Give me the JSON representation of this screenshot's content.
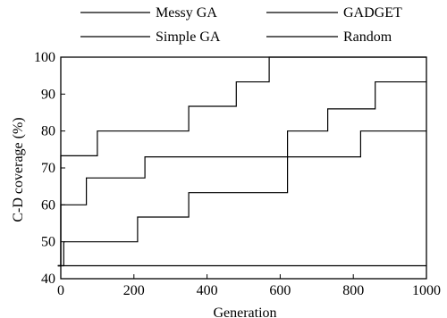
{
  "chart_data": {
    "type": "line",
    "title": "",
    "xlabel": "Generation",
    "ylabel": "C-D coverage (%)",
    "xlim": [
      0,
      1000
    ],
    "ylim": [
      40,
      100
    ],
    "xticks": [
      0,
      200,
      400,
      600,
      800,
      1000
    ],
    "yticks": [
      40,
      50,
      60,
      70,
      80,
      90,
      100
    ],
    "xtick_labels": [
      "0",
      "200",
      "400",
      "600",
      "800",
      "1000"
    ],
    "ytick_labels": [
      "40",
      "50",
      "60",
      "70",
      "80",
      "90",
      "100"
    ],
    "grid": false,
    "legend_position": "top",
    "line_color": "#000000",
    "series": [
      {
        "name": "Messy GA",
        "x": [
          -8,
          0,
          0,
          100,
          100,
          350,
          350,
          480,
          480,
          570,
          570,
          1000
        ],
        "y": [
          43.5,
          43.5,
          73.3,
          73.3,
          80,
          80,
          86.7,
          86.7,
          93.3,
          93.3,
          100,
          100
        ]
      },
      {
        "name": "GADGET",
        "x": [
          -8,
          0,
          0,
          70,
          70,
          230,
          230,
          620,
          620,
          730,
          730,
          860,
          860,
          1000
        ],
        "y": [
          43.5,
          43.5,
          60,
          60,
          67.3,
          67.3,
          73,
          73,
          80,
          80,
          86,
          86,
          93.3,
          93.3
        ]
      },
      {
        "name": "Simple GA",
        "x": [
          -8,
          8,
          8,
          210,
          210,
          350,
          350,
          620,
          620,
          820,
          820,
          1000
        ],
        "y": [
          43.5,
          43.5,
          50,
          50,
          56.7,
          56.7,
          63.3,
          63.3,
          73,
          73,
          80,
          80
        ]
      },
      {
        "name": "Random",
        "x": [
          -8,
          1000
        ],
        "y": [
          43.5,
          43.5
        ]
      }
    ]
  }
}
